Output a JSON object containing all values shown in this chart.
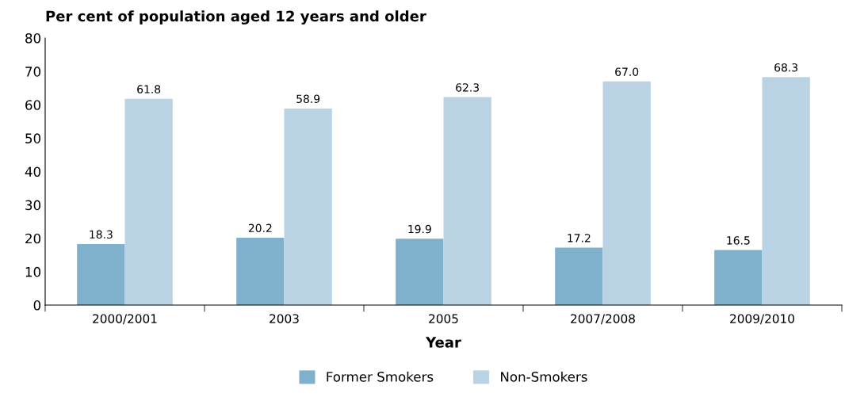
{
  "chart_data": {
    "type": "bar",
    "title": "Per cent of population aged 12 years and older",
    "xlabel": "Year",
    "categories": [
      "2000/2001",
      "2003",
      "2005",
      "2007/2008",
      "2009/2010"
    ],
    "series": [
      {
        "name": "Former Smokers",
        "color": "#7fb0cc",
        "values": [
          18.3,
          20.2,
          19.9,
          17.2,
          16.5
        ],
        "value_labels": [
          "18.3",
          "20.2",
          "19.9",
          "17.2",
          "16.5"
        ]
      },
      {
        "name": "Non-Smokers",
        "color": "#b9d3e5",
        "values": [
          61.8,
          58.9,
          62.3,
          67.0,
          68.3
        ],
        "value_labels": [
          "61.8",
          "58.9",
          "62.3",
          "67.0",
          "68.3"
        ]
      }
    ],
    "ylim": [
      0,
      80
    ],
    "yticks": [
      0,
      10,
      20,
      30,
      40,
      50,
      60,
      70,
      80
    ],
    "grid": false,
    "legend": "bottom"
  }
}
